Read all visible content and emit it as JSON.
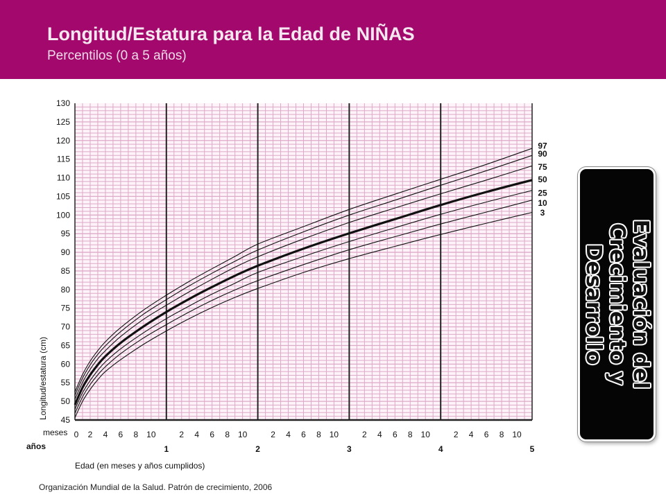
{
  "header": {
    "title": "Longitud/Estatura para la Edad de NIÑAS",
    "subtitle": "Percentilos (0 a 5 años)"
  },
  "side_badge": {
    "text": "Evaluación del Crecimiento y Desarrollo"
  },
  "footer": {
    "source": "Organización Mundial de la Salud. Patrón de crecimiento, 2006"
  },
  "colors": {
    "header_bg": "#a3096d",
    "grid_minor": "#dda9c8",
    "grid_major": "#222222",
    "curve": "#111111"
  },
  "chart_data": {
    "type": "line",
    "x_unit": "months",
    "xlim": [
      0,
      60
    ],
    "ylim": [
      45,
      130
    ],
    "grid": true,
    "ylabel": "Longitud/estatura (cm)",
    "xlabel": "Edad (en meses y años cumplidos)",
    "row_label_months": "meses",
    "row_label_years": "años",
    "y_ticks": [
      45,
      50,
      55,
      60,
      65,
      70,
      75,
      80,
      85,
      90,
      95,
      100,
      105,
      110,
      115,
      120,
      125,
      130
    ],
    "month_ticks": [
      {
        "m": 0,
        "label": "0"
      },
      {
        "m": 2,
        "label": "2"
      },
      {
        "m": 4,
        "label": "4"
      },
      {
        "m": 6,
        "label": "6"
      },
      {
        "m": 8,
        "label": "8"
      },
      {
        "m": 10,
        "label": "10"
      },
      {
        "m": 14,
        "label": "2"
      },
      {
        "m": 16,
        "label": "4"
      },
      {
        "m": 18,
        "label": "6"
      },
      {
        "m": 20,
        "label": "8"
      },
      {
        "m": 22,
        "label": "10"
      },
      {
        "m": 26,
        "label": "2"
      },
      {
        "m": 28,
        "label": "4"
      },
      {
        "m": 30,
        "label": "6"
      },
      {
        "m": 32,
        "label": "8"
      },
      {
        "m": 34,
        "label": "10"
      },
      {
        "m": 38,
        "label": "2"
      },
      {
        "m": 40,
        "label": "4"
      },
      {
        "m": 42,
        "label": "6"
      },
      {
        "m": 44,
        "label": "8"
      },
      {
        "m": 46,
        "label": "10"
      },
      {
        "m": 50,
        "label": "2"
      },
      {
        "m": 52,
        "label": "4"
      },
      {
        "m": 54,
        "label": "6"
      },
      {
        "m": 56,
        "label": "8"
      },
      {
        "m": 58,
        "label": "10"
      }
    ],
    "year_ticks": [
      {
        "m": 12,
        "label": "1"
      },
      {
        "m": 24,
        "label": "2"
      },
      {
        "m": 36,
        "label": "3"
      },
      {
        "m": 48,
        "label": "4"
      },
      {
        "m": 60,
        "label": "5"
      }
    ],
    "x": [
      0,
      1,
      2,
      3,
      4,
      6,
      9,
      12,
      15,
      18,
      21,
      24,
      30,
      36,
      42,
      48,
      54,
      60
    ],
    "series": [
      {
        "name": "97",
        "bold": false,
        "values": [
          52.5,
          57.2,
          60.8,
          63.6,
          66.0,
          69.8,
          74.5,
          78.5,
          82.2,
          85.6,
          88.9,
          92.2,
          96.9,
          101.5,
          105.6,
          109.6,
          113.6,
          117.9
        ]
      },
      {
        "name": "90",
        "bold": false,
        "values": [
          51.6,
          56.2,
          59.8,
          62.6,
          64.9,
          68.7,
          73.4,
          77.3,
          81.0,
          84.4,
          87.6,
          90.6,
          95.5,
          100.0,
          104.0,
          108.0,
          111.9,
          116.0
        ]
      },
      {
        "name": "75",
        "bold": false,
        "values": [
          50.6,
          55.1,
          58.6,
          61.4,
          63.6,
          67.4,
          72.0,
          75.8,
          79.4,
          82.8,
          86.0,
          88.8,
          93.6,
          98.0,
          101.9,
          105.7,
          109.4,
          113.2
        ]
      },
      {
        "name": "50",
        "bold": true,
        "values": [
          49.1,
          53.7,
          57.1,
          59.8,
          62.1,
          65.7,
          70.1,
          74.0,
          77.5,
          80.7,
          83.7,
          86.4,
          91.0,
          95.1,
          98.9,
          102.7,
          106.2,
          109.4
        ]
      },
      {
        "name": "25",
        "bold": false,
        "values": [
          47.9,
          52.3,
          55.6,
          58.3,
          60.6,
          64.1,
          68.4,
          72.2,
          75.6,
          78.8,
          81.7,
          84.6,
          88.9,
          92.9,
          96.6,
          100.2,
          103.5,
          106.6
        ]
      },
      {
        "name": "10",
        "bold": false,
        "values": [
          46.8,
          51.2,
          54.5,
          57.1,
          59.3,
          62.8,
          67.0,
          70.6,
          74.0,
          77.1,
          79.9,
          82.4,
          86.7,
          90.7,
          94.2,
          97.6,
          100.8,
          104.0
        ]
      },
      {
        "name": "3",
        "bold": false,
        "values": [
          45.6,
          50.0,
          53.2,
          55.8,
          58.0,
          61.2,
          65.3,
          68.9,
          72.2,
          75.2,
          77.9,
          80.3,
          84.6,
          88.3,
          91.6,
          94.8,
          97.8,
          100.7
        ]
      }
    ],
    "label_positions": {
      "97": 118.6,
      "90": 116.4,
      "75": 112.9,
      "50": 109.5,
      "25": 105.9,
      "10": 103.2,
      "3": 100.6
    }
  }
}
